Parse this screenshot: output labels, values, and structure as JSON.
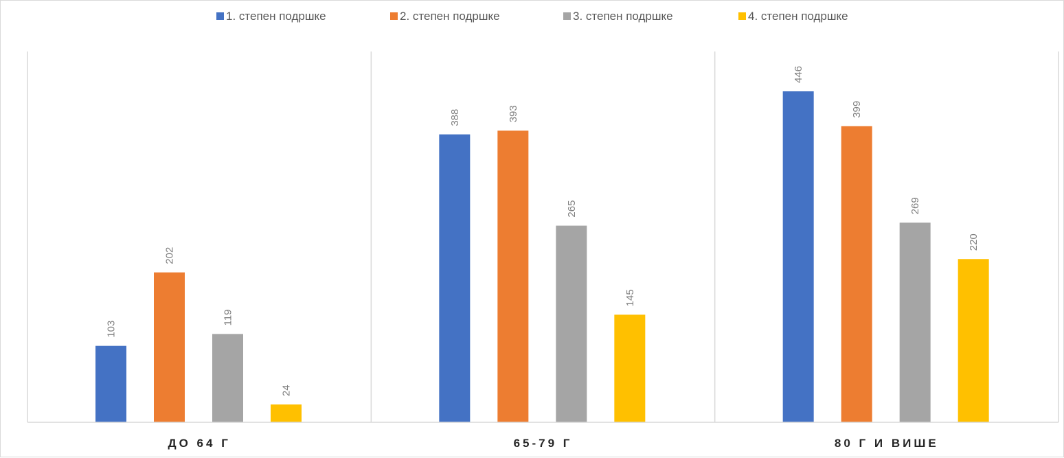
{
  "chart_data": {
    "type": "bar",
    "title": "",
    "xlabel": "",
    "ylabel": "",
    "ylim": [
      0,
      480
    ],
    "grid": false,
    "category_separators": true,
    "legend_position": "top",
    "data_labels": "rotated-vertical",
    "categories": [
      "ДО 64 Г",
      "65-79 Г",
      "80 Г И ВИШЕ"
    ],
    "series": [
      {
        "name": "1. степен подршке",
        "color": "#4472C4",
        "values": [
          103,
          388,
          446
        ]
      },
      {
        "name": "2. степен подршке",
        "color": "#ED7D31",
        "values": [
          202,
          393,
          399
        ]
      },
      {
        "name": "3. степен подршке",
        "color": "#A5A5A5",
        "values": [
          119,
          265,
          269
        ]
      },
      {
        "name": "4. степен подршке",
        "color": "#FFC000",
        "values": [
          24,
          145,
          220
        ]
      }
    ]
  }
}
